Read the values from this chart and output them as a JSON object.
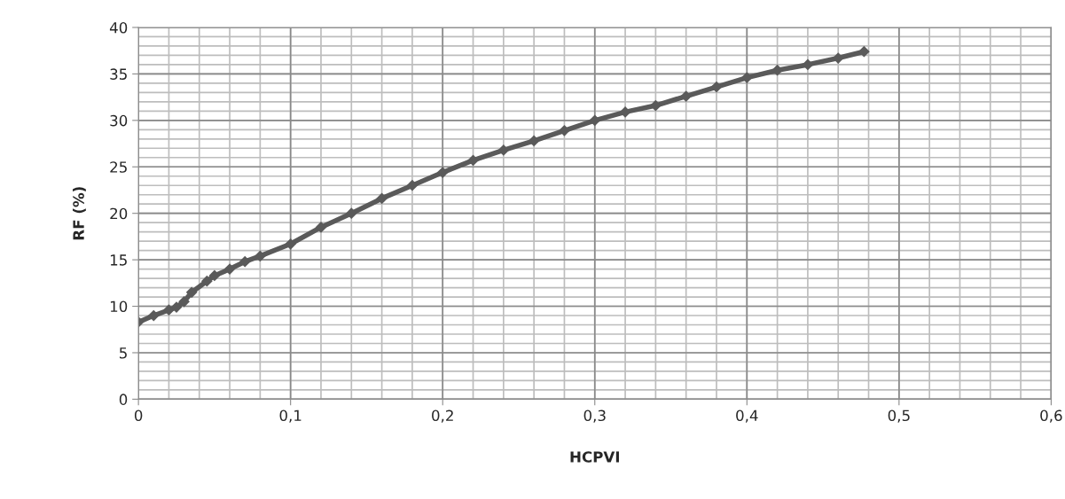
{
  "chart_data": {
    "type": "line",
    "xlabel": "HCPVI",
    "ylabel": "RF (%)",
    "series": [
      {
        "color": "#5a5a5a",
        "x": [
          0,
          0.01,
          0.02,
          0.025,
          0.03,
          0.035,
          0.045,
          0.05,
          0.06,
          0.07,
          0.08,
          0.1,
          0.12,
          0.14,
          0.16,
          0.18,
          0.2,
          0.22,
          0.24,
          0.26,
          0.28,
          0.3,
          0.32,
          0.34,
          0.36,
          0.38,
          0.4,
          0.42,
          0.44,
          0.46,
          0.477
        ],
        "values": [
          8.3,
          9.0,
          9.6,
          9.9,
          10.5,
          11.5,
          12.7,
          13.3,
          14.0,
          14.8,
          15.4,
          16.7,
          18.5,
          20.0,
          21.6,
          23.0,
          24.4,
          25.7,
          26.8,
          27.8,
          28.9,
          30.0,
          30.9,
          31.6,
          32.6,
          33.6,
          34.6,
          35.4,
          36.0,
          36.7,
          37.4
        ]
      }
    ],
    "xlim": [
      0,
      0.6
    ],
    "xticks": [
      {
        "value": 0,
        "label": "0"
      },
      {
        "value": 0.1,
        "label": "0,1"
      },
      {
        "value": 0.2,
        "label": "0,2"
      },
      {
        "value": 0.3,
        "label": "0,3"
      },
      {
        "value": 0.4,
        "label": "0,4"
      },
      {
        "value": 0.5,
        "label": "0,5"
      },
      {
        "value": 0.6,
        "label": "0,6"
      }
    ],
    "ylim": [
      0,
      40
    ],
    "yticks": [
      0,
      5,
      10,
      15,
      20,
      25,
      30,
      35,
      40
    ],
    "grid": true,
    "marker": "diamond",
    "line_style": "solid",
    "legend": false
  }
}
